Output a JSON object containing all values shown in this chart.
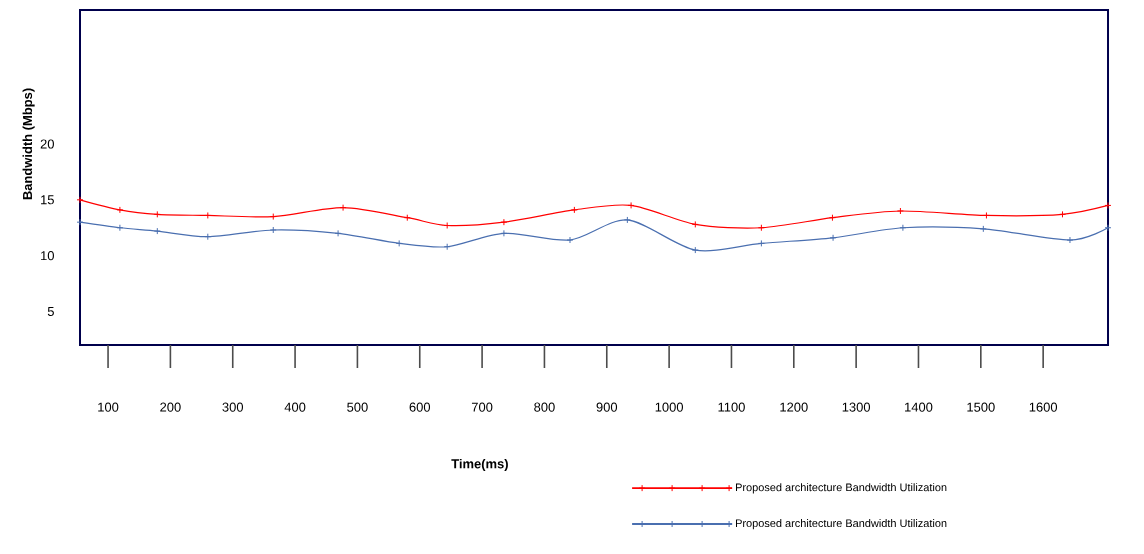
{
  "chart_data": {
    "type": "line",
    "xlabel": "Time(ms)",
    "ylabel": "Bandwidth  (Mbps)",
    "xlim": [
      55,
      1704
    ],
    "ylim": [
      2,
      32
    ],
    "xticks": [
      100,
      200,
      300,
      400,
      500,
      600,
      700,
      800,
      900,
      1000,
      1100,
      1200,
      1300,
      1400,
      1500,
      1600
    ],
    "yticks": [
      5,
      10,
      15,
      20
    ],
    "marker": "cross",
    "line_style": "solid",
    "legend": "bottom right",
    "grid": false,
    "series": [
      {
        "name": "Proposed architecture Bandwidth Utilization",
        "color": "#ff0000",
        "x": [
          55,
          119,
          179,
          260,
          365,
          477,
          580,
          644,
          735,
          848,
          939,
          1042,
          1148,
          1262,
          1371,
          1509,
          1631,
          1704
        ],
        "values": [
          15.0,
          14.1,
          13.7,
          13.6,
          13.5,
          14.3,
          13.4,
          12.7,
          13.0,
          14.1,
          14.5,
          12.8,
          12.5,
          13.4,
          14.0,
          13.6,
          13.7,
          14.5
        ]
      },
      {
        "name": "Proposed architecture Bandwidth Utilization",
        "color": "#4a6fb0",
        "x": [
          55,
          119,
          179,
          260,
          365,
          469,
          567,
          644,
          735,
          841,
          933,
          1042,
          1148,
          1263,
          1375,
          1504,
          1643,
          1704
        ],
        "values": [
          13.0,
          12.5,
          12.2,
          11.7,
          12.3,
          12.0,
          11.1,
          10.8,
          12.0,
          11.4,
          13.2,
          10.5,
          11.1,
          11.6,
          12.5,
          12.4,
          11.4,
          12.5
        ]
      }
    ]
  }
}
